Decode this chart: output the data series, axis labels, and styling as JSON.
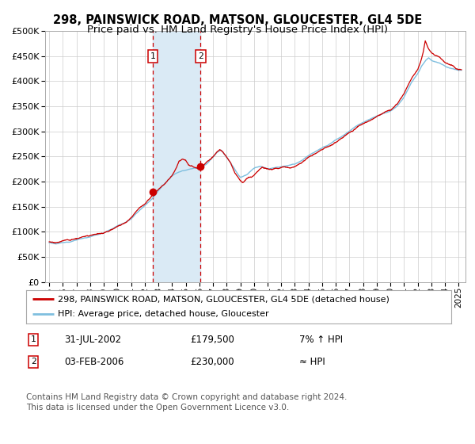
{
  "title1": "298, PAINSWICK ROAD, MATSON, GLOUCESTER, GL4 5DE",
  "title2": "Price paid vs. HM Land Registry's House Price Index (HPI)",
  "legend_line1": "298, PAINSWICK ROAD, MATSON, GLOUCESTER, GL4 5DE (detached house)",
  "legend_line2": "HPI: Average price, detached house, Gloucester",
  "annotation1_date": "31-JUL-2002",
  "annotation1_price": "£179,500",
  "annotation1_hpi": "7% ↑ HPI",
  "annotation2_date": "03-FEB-2006",
  "annotation2_price": "£230,000",
  "annotation2_hpi": "≈ HPI",
  "footer": "Contains HM Land Registry data © Crown copyright and database right 2024.\nThis data is licensed under the Open Government Licence v3.0.",
  "purchase1_year": 2002.58,
  "purchase1_value": 179500,
  "purchase2_year": 2006.09,
  "purchase2_value": 230000,
  "hpi_line_color": "#7fbfdf",
  "price_line_color": "#cc0000",
  "marker_color": "#cc0000",
  "shade_color": "#daeaf5",
  "vline_color": "#cc0000",
  "grid_color": "#cccccc",
  "background_color": "#ffffff",
  "ylim": [
    0,
    500000
  ],
  "xlim_min": 1994.7,
  "xlim_max": 2025.5,
  "hpi_anchors": [
    [
      1995.0,
      78000
    ],
    [
      1995.5,
      77000
    ],
    [
      1996.0,
      80000
    ],
    [
      1996.5,
      81000
    ],
    [
      1997.0,
      85000
    ],
    [
      1997.5,
      88000
    ],
    [
      1998.0,
      91000
    ],
    [
      1998.5,
      95000
    ],
    [
      1999.0,
      98000
    ],
    [
      1999.5,
      105000
    ],
    [
      2000.0,
      113000
    ],
    [
      2000.5,
      120000
    ],
    [
      2001.0,
      128000
    ],
    [
      2001.5,
      142000
    ],
    [
      2002.0,
      155000
    ],
    [
      2002.5,
      168000
    ],
    [
      2003.0,
      185000
    ],
    [
      2003.5,
      200000
    ],
    [
      2004.0,
      213000
    ],
    [
      2004.5,
      220000
    ],
    [
      2005.0,
      224000
    ],
    [
      2005.5,
      226000
    ],
    [
      2006.0,
      228000
    ],
    [
      2006.5,
      233000
    ],
    [
      2007.0,
      248000
    ],
    [
      2007.3,
      258000
    ],
    [
      2007.6,
      262000
    ],
    [
      2008.0,
      248000
    ],
    [
      2008.5,
      228000
    ],
    [
      2009.0,
      208000
    ],
    [
      2009.5,
      213000
    ],
    [
      2010.0,
      225000
    ],
    [
      2010.5,
      228000
    ],
    [
      2011.0,
      224000
    ],
    [
      2011.5,
      226000
    ],
    [
      2012.0,
      227000
    ],
    [
      2012.5,
      229000
    ],
    [
      2013.0,
      232000
    ],
    [
      2013.5,
      240000
    ],
    [
      2014.0,
      250000
    ],
    [
      2014.5,
      258000
    ],
    [
      2015.0,
      265000
    ],
    [
      2015.5,
      272000
    ],
    [
      2016.0,
      282000
    ],
    [
      2016.5,
      290000
    ],
    [
      2017.0,
      300000
    ],
    [
      2017.5,
      310000
    ],
    [
      2018.0,
      318000
    ],
    [
      2018.5,
      323000
    ],
    [
      2019.0,
      330000
    ],
    [
      2019.5,
      336000
    ],
    [
      2020.0,
      340000
    ],
    [
      2020.5,
      350000
    ],
    [
      2021.0,
      368000
    ],
    [
      2021.5,
      395000
    ],
    [
      2022.0,
      415000
    ],
    [
      2022.3,
      430000
    ],
    [
      2022.6,
      440000
    ],
    [
      2022.8,
      445000
    ],
    [
      2023.0,
      440000
    ],
    [
      2023.3,
      438000
    ],
    [
      2023.6,
      435000
    ],
    [
      2024.0,
      430000
    ],
    [
      2024.5,
      425000
    ],
    [
      2025.0,
      422000
    ]
  ],
  "price_anchors": [
    [
      1995.0,
      80000
    ],
    [
      1995.5,
      79000
    ],
    [
      1996.0,
      82000
    ],
    [
      1996.5,
      84000
    ],
    [
      1997.0,
      87000
    ],
    [
      1997.5,
      91000
    ],
    [
      1998.0,
      93000
    ],
    [
      1998.5,
      97000
    ],
    [
      1999.0,
      100000
    ],
    [
      1999.5,
      107000
    ],
    [
      2000.0,
      115000
    ],
    [
      2000.5,
      123000
    ],
    [
      2001.0,
      132000
    ],
    [
      2001.5,
      148000
    ],
    [
      2002.0,
      160000
    ],
    [
      2002.4,
      172000
    ],
    [
      2002.58,
      179500
    ],
    [
      2002.8,
      184000
    ],
    [
      2003.0,
      190000
    ],
    [
      2003.3,
      198000
    ],
    [
      2003.6,
      205000
    ],
    [
      2004.0,
      218000
    ],
    [
      2004.3,
      232000
    ],
    [
      2004.5,
      245000
    ],
    [
      2004.8,
      248000
    ],
    [
      2005.0,
      244000
    ],
    [
      2005.2,
      235000
    ],
    [
      2005.4,
      232000
    ],
    [
      2005.7,
      230000
    ],
    [
      2006.0,
      228000
    ],
    [
      2006.09,
      230000
    ],
    [
      2006.3,
      235000
    ],
    [
      2006.6,
      242000
    ],
    [
      2007.0,
      252000
    ],
    [
      2007.3,
      262000
    ],
    [
      2007.5,
      265000
    ],
    [
      2007.7,
      260000
    ],
    [
      2008.0,
      250000
    ],
    [
      2008.3,
      238000
    ],
    [
      2008.6,
      218000
    ],
    [
      2009.0,
      205000
    ],
    [
      2009.2,
      200000
    ],
    [
      2009.4,
      205000
    ],
    [
      2009.6,
      210000
    ],
    [
      2009.8,
      208000
    ],
    [
      2010.0,
      212000
    ],
    [
      2010.2,
      218000
    ],
    [
      2010.4,
      225000
    ],
    [
      2010.6,
      230000
    ],
    [
      2010.8,
      228000
    ],
    [
      2011.0,
      226000
    ],
    [
      2011.3,
      224000
    ],
    [
      2011.6,
      227000
    ],
    [
      2012.0,
      229000
    ],
    [
      2012.3,
      231000
    ],
    [
      2012.6,
      230000
    ],
    [
      2013.0,
      234000
    ],
    [
      2013.5,
      243000
    ],
    [
      2014.0,
      253000
    ],
    [
      2014.5,
      262000
    ],
    [
      2015.0,
      270000
    ],
    [
      2015.5,
      278000
    ],
    [
      2016.0,
      286000
    ],
    [
      2016.5,
      294000
    ],
    [
      2017.0,
      304000
    ],
    [
      2017.5,
      313000
    ],
    [
      2018.0,
      321000
    ],
    [
      2018.5,
      326000
    ],
    [
      2019.0,
      333000
    ],
    [
      2019.5,
      339000
    ],
    [
      2020.0,
      343000
    ],
    [
      2020.5,
      354000
    ],
    [
      2021.0,
      372000
    ],
    [
      2021.5,
      400000
    ],
    [
      2022.0,
      420000
    ],
    [
      2022.2,
      435000
    ],
    [
      2022.4,
      455000
    ],
    [
      2022.55,
      478000
    ],
    [
      2022.65,
      472000
    ],
    [
      2022.75,
      465000
    ],
    [
      2022.85,
      460000
    ],
    [
      2023.0,
      455000
    ],
    [
      2023.2,
      450000
    ],
    [
      2023.4,
      448000
    ],
    [
      2023.6,
      445000
    ],
    [
      2023.8,
      440000
    ],
    [
      2024.0,
      435000
    ],
    [
      2024.3,
      432000
    ],
    [
      2024.6,
      430000
    ],
    [
      2024.8,
      425000
    ],
    [
      2025.0,
      423000
    ]
  ]
}
